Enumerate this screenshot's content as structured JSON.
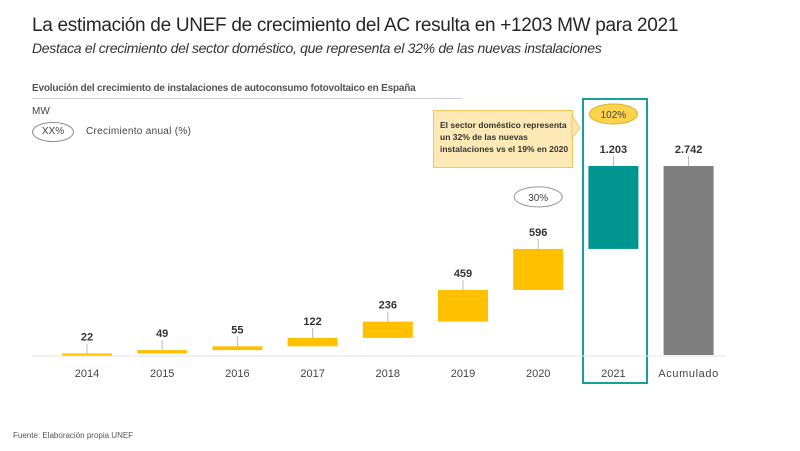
{
  "title": "La estimación de UNEF de crecimiento del AC resulta en +1203 MW para 2021",
  "subtitle": "Destaca el crecimiento del sector doméstico, que representa el 32% de las nuevas instalaciones",
  "footer": "Fuente: Elaboración propia UNEF",
  "colors": {
    "yearly": "#ffc000",
    "highlight": "#009690",
    "total": "#7f7f7f",
    "highlight_border": "#16a09a"
  },
  "chart_data": {
    "type": "waterfall",
    "title": "Evolución del crecimiento de instalaciones de autoconsumo fotovoltaico en España",
    "ylabel": "MW",
    "legend": {
      "symbol": "XX%",
      "label": "Crecimiento anual (%)"
    },
    "categories": [
      "2014",
      "2015",
      "2016",
      "2017",
      "2018",
      "2019",
      "2020",
      "2021",
      "Acumulado"
    ],
    "values": [
      22,
      49,
      55,
      122,
      236,
      459,
      596,
      1203,
      2742
    ],
    "value_labels": [
      "22",
      "49",
      "55",
      "122",
      "236",
      "459",
      "596",
      "1.203",
      "2.742"
    ],
    "growth_annotations": [
      {
        "category": "2020",
        "label": "30%"
      },
      {
        "category": "2021",
        "label": "102%"
      }
    ],
    "callout": "El sector doméstico representa un 32% de las nuevas instalaciones vs el 19% en 2020",
    "ylim": [
      0,
      2742
    ],
    "grid": false
  }
}
